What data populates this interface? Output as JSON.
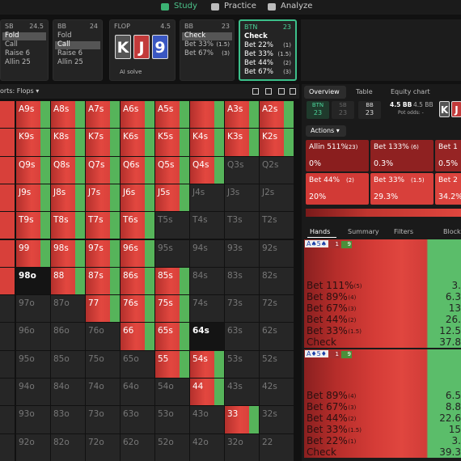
{
  "nav": {
    "items": [
      "Study",
      "Practice",
      "Analyze"
    ],
    "selected": 0
  },
  "spots": [
    {
      "position": "SB",
      "stack": "24.5",
      "actions": [
        "Fold",
        "Call",
        "Raise 6",
        "Allin 25"
      ],
      "selected": 0
    },
    {
      "position": "BB",
      "stack": "24",
      "actions": [
        "Fold",
        "Call",
        "Raise 6",
        "Allin 25"
      ],
      "selected": 1
    },
    {
      "position": "FLOP",
      "stack": "4.5",
      "cards": [
        "K",
        "J",
        "9"
      ],
      "button": "AI solve"
    },
    {
      "position": "BB",
      "stack": "23",
      "actions": [
        "Check",
        "Bet 33%",
        "Bet 67%"
      ],
      "sizes": [
        null,
        "(1.5)",
        "(3)"
      ],
      "selected": 0
    },
    {
      "position": "BTN",
      "stack": "23",
      "actions": [
        "Check",
        "Bet 22%",
        "Bet 33%",
        "Bet 44%",
        "Bet 67%"
      ],
      "sizes": [
        null,
        "(1)",
        "(1.5)",
        "(2)",
        "(3)"
      ],
      "active": true
    }
  ],
  "matrix": {
    "filter": "orts: Flops ▾",
    "rows": [
      [
        "A9s",
        "A8s",
        "A7s",
        "A6s",
        "A5s",
        null,
        "A3s",
        "A2s"
      ],
      [
        "K9s",
        "K8s",
        "K7s",
        "K6s",
        "K5s",
        "K4s",
        "K3s",
        "K2s"
      ],
      [
        "Q9s",
        "Q8s",
        "Q7s",
        "Q6s",
        "Q5s",
        "Q4s",
        "Q3s",
        "Q2s"
      ],
      [
        "J9s",
        "J8s",
        "J7s",
        "J6s",
        "J5s",
        "J4s",
        "J3s",
        "J2s"
      ],
      [
        "T9s",
        "T8s",
        "T7s",
        "T6s",
        "T5s",
        "T4s",
        "T3s",
        "T2s"
      ],
      [
        "99",
        "98s",
        "97s",
        "96s",
        "95s",
        "94s",
        "93s",
        "92s"
      ],
      [
        "98o",
        "88",
        "87s",
        "86s",
        "85s",
        "84s",
        "83s",
        "82s"
      ],
      [
        "97o",
        "87o",
        "77",
        "76s",
        "75s",
        "74s",
        "73s",
        "72s"
      ],
      [
        "96o",
        "86o",
        "76o",
        "66",
        "65s",
        "64s",
        "63s",
        "62s"
      ],
      [
        "95o",
        "85o",
        "75o",
        "65o",
        "55",
        "54s",
        "53s",
        "52s"
      ],
      [
        "94o",
        "84o",
        "74o",
        "64o",
        "54o",
        "44",
        "43s",
        "42s"
      ],
      [
        "93o",
        "83o",
        "73o",
        "63o",
        "53o",
        "43o",
        "33",
        "32s"
      ],
      [
        "92o",
        "82o",
        "72o",
        "62o",
        "52o",
        "42o",
        "32o",
        "22"
      ]
    ],
    "states": [
      [
        "mixed",
        "mixed",
        "mixed",
        "mixed",
        "mixed",
        "mixed",
        "mixed",
        "mixed"
      ],
      [
        "mixed",
        "mixed",
        "mixed",
        "mixed",
        "mixed",
        "mixed",
        "mixed",
        "mixed"
      ],
      [
        "mixed",
        "mixed",
        "mixed",
        "mixed",
        "mixed",
        "mixed",
        "off",
        "off"
      ],
      [
        "mixed",
        "mixed",
        "mixed",
        "mixed",
        "mixed",
        "off",
        "off",
        "off"
      ],
      [
        "mixed",
        "mixed",
        "mixed",
        "mixed",
        "off",
        "off",
        "off",
        "off"
      ],
      [
        "mixed",
        "mixed",
        "mixed",
        "mixed",
        "off",
        "off",
        "off",
        "off"
      ],
      [
        "focus",
        "mixed",
        "mixed",
        "mixed",
        "mixed",
        "off",
        "off",
        "off"
      ],
      [
        "off",
        "off",
        "mixed",
        "mixed",
        "mixed",
        "off",
        "off",
        "off"
      ],
      [
        "off",
        "off",
        "off",
        "mixed",
        "mixed",
        "focus",
        "off",
        "off"
      ],
      [
        "off",
        "off",
        "off",
        "off",
        "mixed",
        "mixed",
        "off",
        "off"
      ],
      [
        "off",
        "off",
        "off",
        "off",
        "off",
        "mixed",
        "off",
        "off"
      ],
      [
        "off",
        "off",
        "off",
        "off",
        "off",
        "off",
        "mixed",
        "off"
      ],
      [
        "off",
        "off",
        "off",
        "off",
        "off",
        "off",
        "off",
        "off"
      ]
    ]
  },
  "panel": {
    "tabs": [
      "Overview",
      "Table",
      "Equity chart"
    ],
    "players": [
      {
        "position": "BTN",
        "stack": "23"
      },
      {
        "position": "SB",
        "stack": "23"
      },
      {
        "position": "BB",
        "stack": "23"
      }
    ],
    "pot": [
      "4.5 BB",
      "4.5 BB"
    ],
    "pot_odds": "Pot odds: -",
    "board": [
      "K",
      "J"
    ],
    "actions_label": "Actions ▾",
    "actions": [
      {
        "label": "Allin 511%",
        "size": "(23)",
        "freq": "0%"
      },
      {
        "label": "Bet 133%",
        "size": "(6)",
        "freq": "0.3%"
      },
      {
        "label": "Bet 1",
        "freq": "0.5%"
      },
      {
        "label": "Bet 44%",
        "size": "(2)",
        "freq": "20%"
      },
      {
        "label": "Bet 33%",
        "size": "(1.5)",
        "freq": "29.3%"
      },
      {
        "label": "Bet 2",
        "freq": "34.2%"
      }
    ],
    "hands_tabs": [
      "Hands",
      "Summary",
      "Filters",
      "Block"
    ],
    "hands": [
      {
        "cards": "A♠5♠",
        "badges": [
          "1",
          "9"
        ],
        "lines": [
          {
            "label": "Bet 111%",
            "size": "(5)",
            "value": "3."
          },
          {
            "label": "Bet 89%",
            "size": "(4)",
            "value": "6.3"
          },
          {
            "label": "Bet 67%",
            "size": "(3)",
            "value": "13"
          },
          {
            "label": "Bet 44%",
            "size": "(2)",
            "value": "26."
          },
          {
            "label": "Bet 33%",
            "size": "(1.5)",
            "value": "12.5"
          },
          {
            "label": "Check",
            "value": "37.8"
          }
        ]
      },
      {
        "cards": "A♦5♦",
        "badges": [
          "1",
          "9"
        ],
        "lines": [
          {
            "label": "Bet 89%",
            "size": "(4)",
            "value": "6.5"
          },
          {
            "label": "Bet 67%",
            "size": "(3)",
            "value": "8.8"
          },
          {
            "label": "Bet 44%",
            "size": "(2)",
            "value": "22.6"
          },
          {
            "label": "Bet 33%",
            "size": "(1.5)",
            "value": "15"
          },
          {
            "label": "Bet 22%",
            "size": "(1)",
            "value": "3."
          },
          {
            "label": "Check",
            "value": "39.3"
          }
        ]
      }
    ]
  }
}
